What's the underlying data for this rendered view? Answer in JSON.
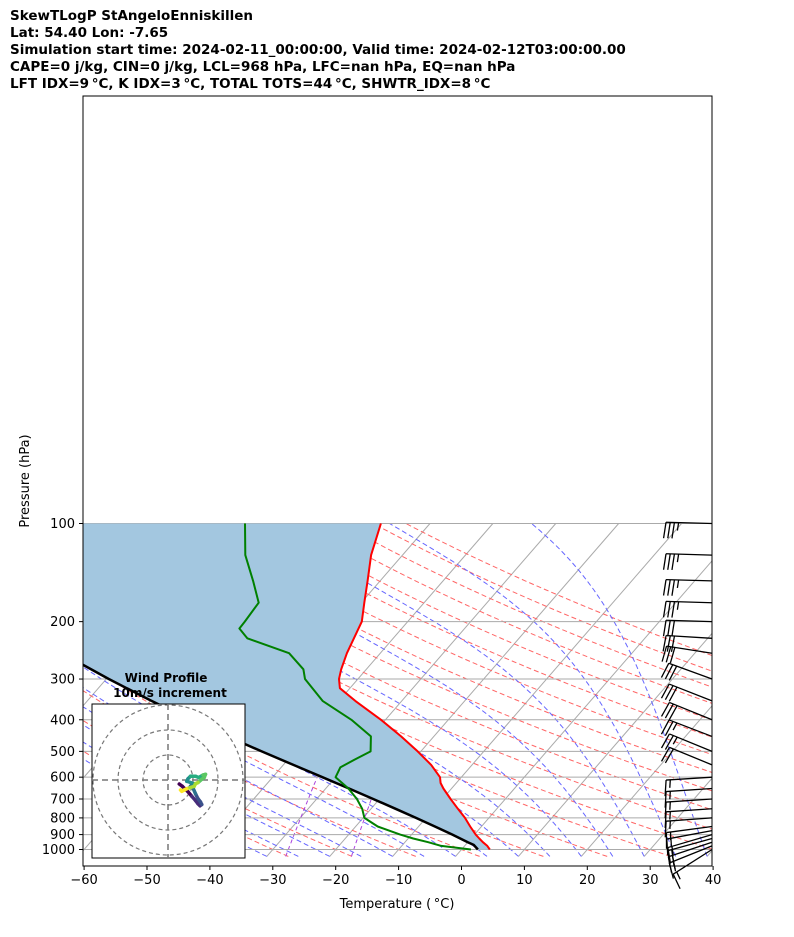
{
  "header": {
    "line1": "SkewTLogP StAngeloEnniskillen",
    "line2": "Lat: 54.40   Lon: -7.65",
    "line3": "Simulation start time: 2024-02-11_00:00:00, Valid time: 2024-02-12T03:00:00.00",
    "line4": "CAPE=0 j/kg, CIN=0 j/kg, LCL=968 hPa, LFC=nan hPa, EQ=nan hPa",
    "line5": "LFT IDX=9 °C, K IDX=3 °C, TOTAL TOTS=44 °C, SHWTR_IDX=8 °C"
  },
  "chart_data": {
    "type": "line",
    "subtype": "skew-T log-P",
    "xlabel": "Temperature ( °C)",
    "ylabel": "Pressure (hPa)",
    "xlim": [
      -60,
      40
    ],
    "ylim": [
      1050,
      100
    ],
    "y_scale": "log",
    "grid": true,
    "x_ticks": [
      "−60",
      "−50",
      "−40",
      "−30",
      "−20",
      "−10",
      "0",
      "10",
      "20",
      "30",
      "40"
    ],
    "y_ticks": [
      "100",
      "200",
      "300",
      "400",
      "500",
      "600",
      "700",
      "800",
      "900",
      "1000"
    ],
    "colors": {
      "temperature": "#ff0000",
      "dewpoint": "#008000",
      "parcel": "#000000",
      "shading": "#a3c7e0",
      "dry_adiabats": "#ff6666",
      "moist_adiabats": "#6666ff",
      "mixing_ratio": "#aa44dd",
      "isotherms": "#aaaaaa"
    },
    "series": [
      {
        "key": "temperature",
        "points": [
          [
            1000,
            4.5
          ],
          [
            975,
            3.6
          ],
          [
            950,
            2.4
          ],
          [
            925,
            1.3
          ],
          [
            900,
            0.2
          ],
          [
            850,
            -1.8
          ],
          [
            800,
            -3.8
          ],
          [
            750,
            -6.2
          ],
          [
            700,
            -8.7
          ],
          [
            650,
            -11.3
          ],
          [
            625,
            -12.5
          ],
          [
            600,
            -13.4
          ],
          [
            550,
            -16.5
          ],
          [
            500,
            -20.5
          ],
          [
            450,
            -25.2
          ],
          [
            400,
            -30.7
          ],
          [
            350,
            -37.4
          ],
          [
            320,
            -41.6
          ],
          [
            300,
            -43.0
          ],
          [
            280,
            -44.0
          ],
          [
            250,
            -45.3
          ],
          [
            200,
            -47.3
          ],
          [
            175,
            -49.5
          ],
          [
            150,
            -52.0
          ],
          [
            125,
            -55.0
          ],
          [
            100,
            -57.8
          ]
        ]
      },
      {
        "key": "dewpoint",
        "points": [
          [
            1000,
            1.5
          ],
          [
            975,
            -3.7
          ],
          [
            950,
            -6.3
          ],
          [
            925,
            -9.2
          ],
          [
            900,
            -11.8
          ],
          [
            850,
            -16.5
          ],
          [
            800,
            -19.8
          ],
          [
            750,
            -21.4
          ],
          [
            700,
            -23.6
          ],
          [
            650,
            -26.4
          ],
          [
            600,
            -30.0
          ],
          [
            560,
            -30.6
          ],
          [
            530,
            -29.4
          ],
          [
            500,
            -28.0
          ],
          [
            450,
            -30.0
          ],
          [
            400,
            -35.4
          ],
          [
            350,
            -42.6
          ],
          [
            300,
            -48.4
          ],
          [
            280,
            -50.0
          ],
          [
            250,
            -54.5
          ],
          [
            225,
            -63.2
          ],
          [
            210,
            -65.8
          ],
          [
            200,
            -65.9
          ],
          [
            175,
            -66.3
          ],
          [
            150,
            -70.2
          ],
          [
            125,
            -75.0
          ],
          [
            100,
            -79.4
          ]
        ]
      },
      {
        "key": "parcel",
        "points": [
          [
            1000,
            2.6
          ],
          [
            968,
            1.3
          ],
          [
            950,
            0.0
          ],
          [
            900,
            -3.5
          ],
          [
            850,
            -7.4
          ],
          [
            800,
            -11.6
          ],
          [
            750,
            -16.1
          ],
          [
            700,
            -21.0
          ],
          [
            650,
            -26.3
          ],
          [
            600,
            -32.1
          ],
          [
            550,
            -38.4
          ],
          [
            500,
            -45.3
          ],
          [
            450,
            -52.8
          ],
          [
            400,
            -61.0
          ],
          [
            350,
            -69.8
          ],
          [
            300,
            -79.6
          ],
          [
            250,
            -90.6
          ],
          [
            200,
            -103.4
          ],
          [
            150,
            -119.3
          ],
          [
            100,
            -140.4
          ]
        ]
      }
    ],
    "wind_barbs": [
      {
        "p": 1000,
        "u": 5.5,
        "v": 3.5
      },
      {
        "p": 975,
        "u": 8.0,
        "v": 3.2
      },
      {
        "p": 950,
        "u": 9.0,
        "v": 3.0
      },
      {
        "p": 925,
        "u": 9.0,
        "v": 2.5
      },
      {
        "p": 900,
        "u": 8.5,
        "v": 2.5
      },
      {
        "p": 875,
        "u": 8.0,
        "v": 1.5
      },
      {
        "p": 850,
        "u": 7.5,
        "v": 1.0
      },
      {
        "p": 800,
        "u": 7.0,
        "v": 0.5
      },
      {
        "p": 750,
        "u": 7.5,
        "v": 0.5
      },
      {
        "p": 700,
        "u": 7.5,
        "v": 0.5
      },
      {
        "p": 650,
        "u": 7.5,
        "v": 0.5
      },
      {
        "p": 600,
        "u": 8.0,
        "v": 0.5
      },
      {
        "p": 550,
        "u": 8.5,
        "v": -3.5
      },
      {
        "p": 500,
        "u": 11.0,
        "v": -4.5
      },
      {
        "p": 450,
        "u": 13.0,
        "v": -5.0
      },
      {
        "p": 400,
        "u": 13.5,
        "v": -5.5
      },
      {
        "p": 350,
        "u": 14.0,
        "v": -5.5
      },
      {
        "p": 300,
        "u": 15.0,
        "v": -5.5
      },
      {
        "p": 250,
        "u": 16.0,
        "v": -2.5
      },
      {
        "p": 225,
        "u": 16.5,
        "v": -1.0
      },
      {
        "p": 200,
        "u": 16.5,
        "v": -0.5
      },
      {
        "p": 175,
        "u": 17.0,
        "v": -0.5
      },
      {
        "p": 150,
        "u": 17.5,
        "v": -0.5
      },
      {
        "p": 125,
        "u": 17.5,
        "v": -0.5
      },
      {
        "p": 100,
        "u": 18.0,
        "v": -0.5
      }
    ],
    "hodograph": {
      "title": "Wind Profile",
      "subtitle": "10m/s increment",
      "ring_step": 10,
      "rings": 3,
      "colormap": "viridis",
      "points": [
        [
          4.5,
          -1.6
        ],
        [
          5.7,
          -2.5
        ],
        [
          6.7,
          -3.5
        ],
        [
          8.0,
          -4.7
        ],
        [
          9.5,
          -6.5
        ],
        [
          11.0,
          -8.2
        ],
        [
          12.0,
          -9.5
        ],
        [
          12.8,
          -10.3
        ],
        [
          13.5,
          -9.8
        ],
        [
          13.0,
          -8.8
        ],
        [
          12.0,
          -7.5
        ],
        [
          11.0,
          -5.5
        ],
        [
          10.0,
          -3.2
        ],
        [
          9.0,
          -2.5
        ],
        [
          9.5,
          -2.0
        ],
        [
          10.5,
          -1.5
        ],
        [
          9.0,
          -1.0
        ],
        [
          7.5,
          -0.5
        ],
        [
          8.0,
          0.5
        ],
        [
          9.0,
          1.5
        ],
        [
          11.0,
          1.5
        ],
        [
          12.3,
          1.0
        ],
        [
          14.0,
          2.0
        ],
        [
          15.0,
          2.3
        ],
        [
          14.5,
          1.0
        ],
        [
          13.5,
          0.3
        ],
        [
          12.0,
          -1.0
        ],
        [
          11.0,
          -1.5
        ],
        [
          10.5,
          -2.5
        ],
        [
          9.0,
          -3.0
        ],
        [
          7.5,
          -3.5
        ],
        [
          6.5,
          -4.0
        ],
        [
          5.5,
          -4.5
        ],
        [
          5.0,
          -4.0
        ]
      ]
    }
  }
}
